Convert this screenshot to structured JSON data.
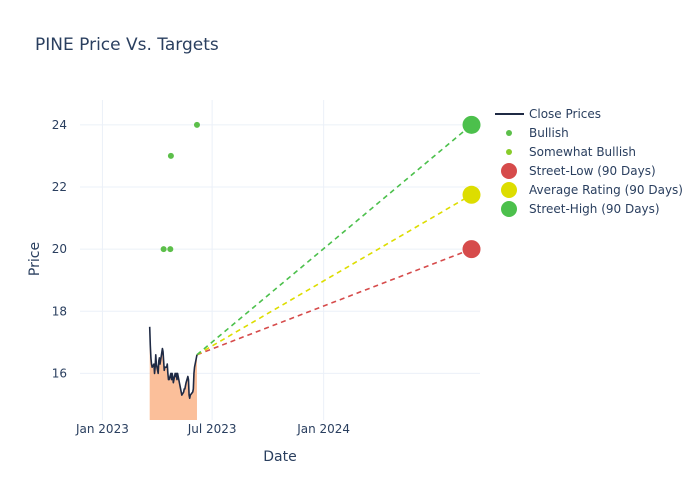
{
  "chart_data": {
    "type": "line",
    "title": "PINE Price Vs. Targets",
    "xlabel": "Date",
    "ylabel": "Price",
    "x_range": [
      "2022-11-25",
      "2024-09-15"
    ],
    "ylim": [
      14.5,
      24.8
    ],
    "x_ticks": [
      {
        "date": "2023-01-01",
        "label": "Jan 2023"
      },
      {
        "date": "2023-07-01",
        "label": "Jul 2023"
      },
      {
        "date": "2024-01-01",
        "label": "Jan 2024"
      }
    ],
    "y_ticks": [
      16,
      18,
      20,
      22,
      24
    ],
    "grid": true,
    "legend_position": "top-right",
    "close_prices": {
      "name": "Close Prices",
      "color": "#1f2a44",
      "fill_color": "#fbbf9a",
      "points": [
        [
          "2023-03-20",
          17.5
        ],
        [
          "2023-03-21",
          16.9
        ],
        [
          "2023-03-22",
          16.5
        ],
        [
          "2023-03-23",
          16.3
        ],
        [
          "2023-03-24",
          16.2
        ],
        [
          "2023-03-27",
          16.3
        ],
        [
          "2023-03-28",
          16.0
        ],
        [
          "2023-03-29",
          16.2
        ],
        [
          "2023-03-30",
          16.6
        ],
        [
          "2023-03-31",
          16.3
        ],
        [
          "2023-04-03",
          16.0
        ],
        [
          "2023-04-04",
          16.4
        ],
        [
          "2023-04-05",
          16.5
        ],
        [
          "2023-04-06",
          16.3
        ],
        [
          "2023-04-10",
          16.8
        ],
        [
          "2023-04-11",
          16.7
        ],
        [
          "2023-04-12",
          16.4
        ],
        [
          "2023-04-13",
          16.1
        ],
        [
          "2023-04-14",
          16.2
        ],
        [
          "2023-04-17",
          16.2
        ],
        [
          "2023-04-18",
          16.3
        ],
        [
          "2023-04-19",
          16.0
        ],
        [
          "2023-04-20",
          15.8
        ],
        [
          "2023-04-21",
          15.8
        ],
        [
          "2023-04-24",
          16.0
        ],
        [
          "2023-04-25",
          15.8
        ],
        [
          "2023-04-26",
          16.0
        ],
        [
          "2023-04-27",
          15.9
        ],
        [
          "2023-04-28",
          15.7
        ],
        [
          "2023-05-01",
          16.0
        ],
        [
          "2023-05-02",
          15.9
        ],
        [
          "2023-05-03",
          16.0
        ],
        [
          "2023-05-04",
          15.8
        ],
        [
          "2023-05-05",
          16.0
        ],
        [
          "2023-05-08",
          15.7
        ],
        [
          "2023-05-09",
          15.6
        ],
        [
          "2023-05-10",
          15.5
        ],
        [
          "2023-05-11",
          15.4
        ],
        [
          "2023-05-12",
          15.3
        ],
        [
          "2023-05-15",
          15.4
        ],
        [
          "2023-05-16",
          15.5
        ],
        [
          "2023-05-17",
          15.5
        ],
        [
          "2023-05-18",
          15.6
        ],
        [
          "2023-05-19",
          15.7
        ],
        [
          "2023-05-22",
          15.9
        ],
        [
          "2023-05-23",
          15.8
        ],
        [
          "2023-05-24",
          15.3
        ],
        [
          "2023-05-25",
          15.2
        ],
        [
          "2023-05-26",
          15.3
        ],
        [
          "2023-05-30",
          15.4
        ],
        [
          "2023-05-31",
          15.5
        ],
        [
          "2023-06-01",
          16.0
        ],
        [
          "2023-06-02",
          16.2
        ],
        [
          "2023-06-05",
          16.5
        ],
        [
          "2023-06-06",
          16.6
        ]
      ]
    },
    "analyst_ratings": [
      {
        "name": "Bullish",
        "color": "#5cbf4a",
        "points": [
          [
            "2023-04-12",
            20
          ],
          [
            "2023-04-23",
            20
          ],
          [
            "2023-04-24",
            23
          ],
          [
            "2023-06-06",
            24
          ]
        ]
      },
      {
        "name": "Somewhat Bullish",
        "color": "#88cc2a",
        "points": []
      }
    ],
    "targets": {
      "start": [
        "2023-06-06",
        16.6
      ],
      "end_date": "2024-09-01",
      "items": [
        {
          "name": "Street-Low (90 Days)",
          "value": 20,
          "color": "#d64b4b"
        },
        {
          "name": "Average Rating (90 Days)",
          "value": 21.75,
          "color": "#dddd00"
        },
        {
          "name": "Street-High (90 Days)",
          "value": 24,
          "color": "#4cc04c"
        }
      ]
    },
    "legend": [
      {
        "label": "Close Prices",
        "symbol": "line",
        "color": "#1f2a44"
      },
      {
        "label": "Bullish",
        "symbol": "small-dot",
        "color": "#5cbf4a"
      },
      {
        "label": "Somewhat Bullish",
        "symbol": "small-dot",
        "color": "#88cc2a"
      },
      {
        "label": "Street-Low (90 Days)",
        "symbol": "big-dot",
        "color": "#d64b4b"
      },
      {
        "label": "Average Rating (90 Days)",
        "symbol": "big-dot",
        "color": "#dddd00"
      },
      {
        "label": "Street-High (90 Days)",
        "symbol": "big-dot",
        "color": "#4cc04c"
      }
    ]
  }
}
